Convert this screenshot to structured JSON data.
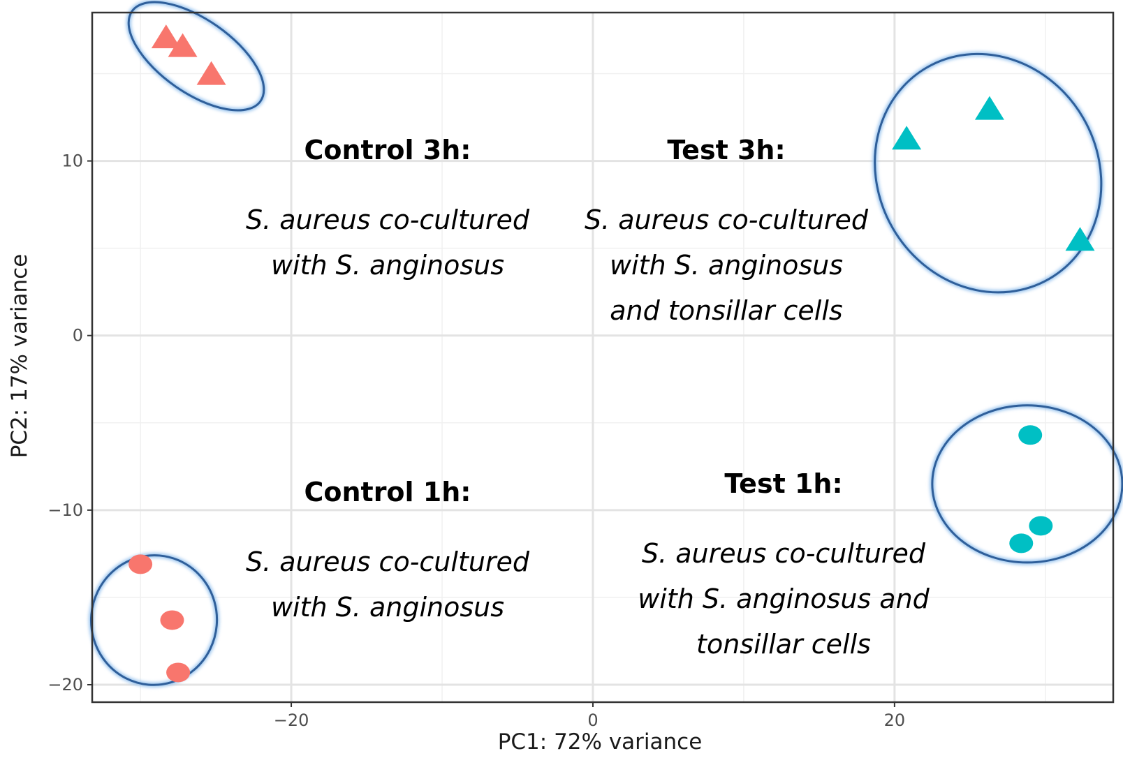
{
  "chart_data": {
    "type": "scatter",
    "xlabel": "PC1: 72% variance",
    "ylabel": "PC2: 17% variance",
    "xlim": [
      -33.2,
      34.5
    ],
    "ylim": [
      -21,
      18.5
    ],
    "x_ticks": [
      -20,
      0,
      20
    ],
    "y_ticks": [
      -20,
      -10,
      0,
      10
    ],
    "grid": true,
    "series": [
      {
        "shape": "triangle",
        "color": "#f8766d",
        "x": [
          -28.3,
          -27.2,
          -25.3
        ],
        "y": [
          17.0,
          16.5,
          14.9
        ]
      },
      {
        "shape": "triangle",
        "color": "#00bfc4",
        "x": [
          20.8,
          26.3,
          32.3
        ],
        "y": [
          11.2,
          12.9,
          5.4
        ]
      },
      {
        "shape": "circle",
        "color": "#f8766d",
        "x": [
          -30.0,
          -27.9,
          -27.5
        ],
        "y": [
          -13.1,
          -16.3,
          -19.3
        ]
      },
      {
        "shape": "circle",
        "color": "#00bfc4",
        "x": [
          29.0,
          28.4,
          29.7
        ],
        "y": [
          -5.7,
          -11.9,
          -10.9
        ]
      }
    ],
    "ellipses": [
      {
        "cx": -26.3,
        "cy": 16.0,
        "rx": 5.2,
        "ry": 2.1,
        "angle": 35
      },
      {
        "cx": 26.2,
        "cy": 9.3,
        "rx": 8.1,
        "ry": 6.3,
        "angle": 60
      },
      {
        "cx": -29.1,
        "cy": -16.3,
        "rx": 4.3,
        "ry": 3.6,
        "angle": 95
      },
      {
        "cx": 28.8,
        "cy": -8.5,
        "rx": 6.3,
        "ry": 4.5,
        "angle": 0
      }
    ],
    "annotations": [
      {
        "heading": "Control 3h:",
        "lines": [
          "S. aureus co-cultured",
          "with S. anginosus"
        ]
      },
      {
        "heading": "Test 3h:",
        "lines": [
          "S. aureus co-cultured",
          "with S. anginosus",
          "and tonsillar cells"
        ]
      },
      {
        "heading": "Control 1h:",
        "lines": [
          "S. aureus co-cultured",
          "with S. anginosus"
        ]
      },
      {
        "heading": "Test 1h:",
        "lines": [
          "S. aureus co-cultured",
          "with S. anginosus and",
          "tonsillar cells"
        ]
      }
    ]
  }
}
